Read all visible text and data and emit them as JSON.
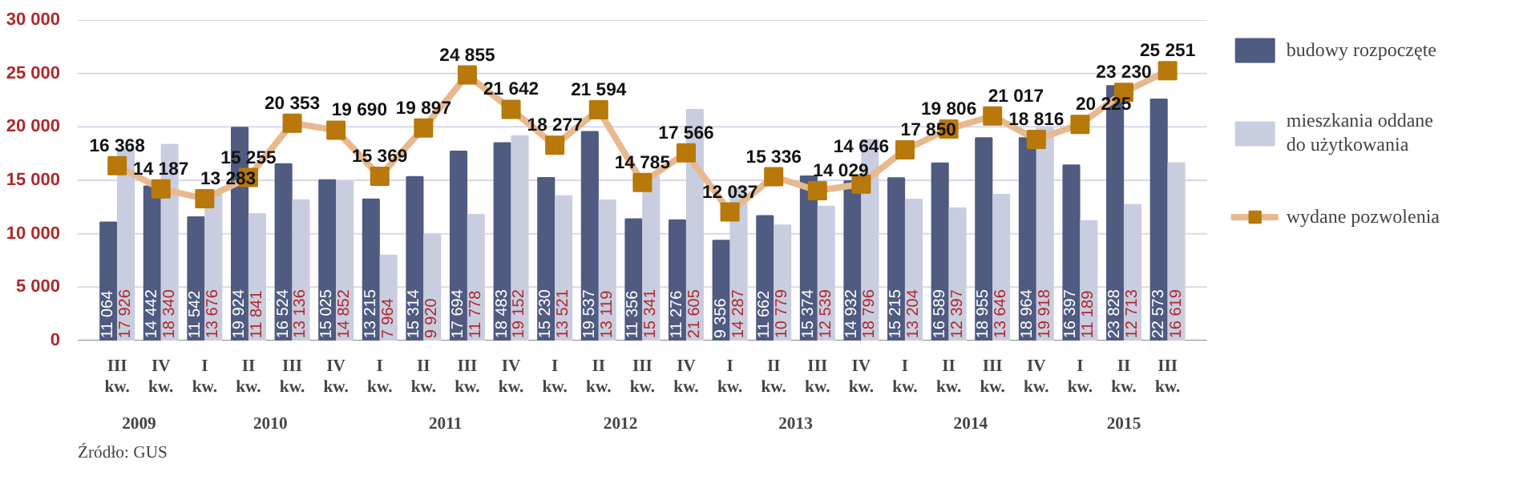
{
  "chart_data": {
    "type": "bar",
    "categories": [
      "III\nkw.",
      "IV\nkw.",
      "I\nkw.",
      "II\nkw.",
      "III\nkw.",
      "IV\nkw.",
      "I\nkw.",
      "II\nkw.",
      "III\nkw.",
      "IV\nkw.",
      "I\nkw.",
      "II\nkw.",
      "III\nkw.",
      "IV\nkw.",
      "I\nkw.",
      "II\nkw.",
      "III\nkw.",
      "IV\nkw.",
      "I\nkw.",
      "II\nkw.",
      "III\nkw.",
      "IV\nkw.",
      "I\nkw.",
      "II\nkw.",
      "III\nkw."
    ],
    "series": [
      {
        "name": "budowy rozpoczęte",
        "color": "#4f5b80",
        "values": [
          11064,
          14442,
          11542,
          19924,
          16524,
          15025,
          13215,
          15314,
          17694,
          18483,
          15230,
          19537,
          11356,
          11276,
          9356,
          11662,
          15374,
          14932,
          15215,
          16589,
          18955,
          18964,
          16397,
          23828,
          22573
        ]
      },
      {
        "name": "mieszkania oddane\ndo użytkowania",
        "color": "#c9cde0",
        "values": [
          17926,
          18340,
          13676,
          11841,
          13136,
          14852,
          7964,
          9920,
          11778,
          19152,
          13521,
          13119,
          15341,
          21605,
          14287,
          10779,
          12539,
          18796,
          13204,
          12397,
          13646,
          19918,
          11189,
          12713,
          16619
        ]
      },
      {
        "name": "wydane pozwolenia",
        "type": "line",
        "color": "#e8b98f",
        "marker": "square",
        "values": [
          16368,
          14187,
          13283,
          15255,
          20353,
          19690,
          15369,
          19897,
          24855,
          21642,
          18277,
          21594,
          14785,
          17566,
          12037,
          15336,
          14029,
          14646,
          17850,
          19806,
          21017,
          18816,
          20225,
          23230,
          25251
        ]
      }
    ],
    "ylim": [
      0,
      30000
    ],
    "yticks": [
      0,
      {
        "value": 5000,
        "label": "5 000"
      },
      {
        "value": 10000,
        "label": "10 000"
      },
      {
        "value": 15000,
        "label": "15 000"
      },
      {
        "value": 20000,
        "label": "20 000"
      },
      {
        "value": 25000,
        "label": "25 000"
      },
      {
        "value": 30000,
        "label": "30 000"
      }
    ],
    "grid": "y",
    "legend": "right",
    "data_labels": true,
    "annotations": [
      "2009",
      "2010",
      "2011",
      "2012",
      "2013",
      "2014",
      "2015",
      "Źródło: GUS"
    ]
  }
}
